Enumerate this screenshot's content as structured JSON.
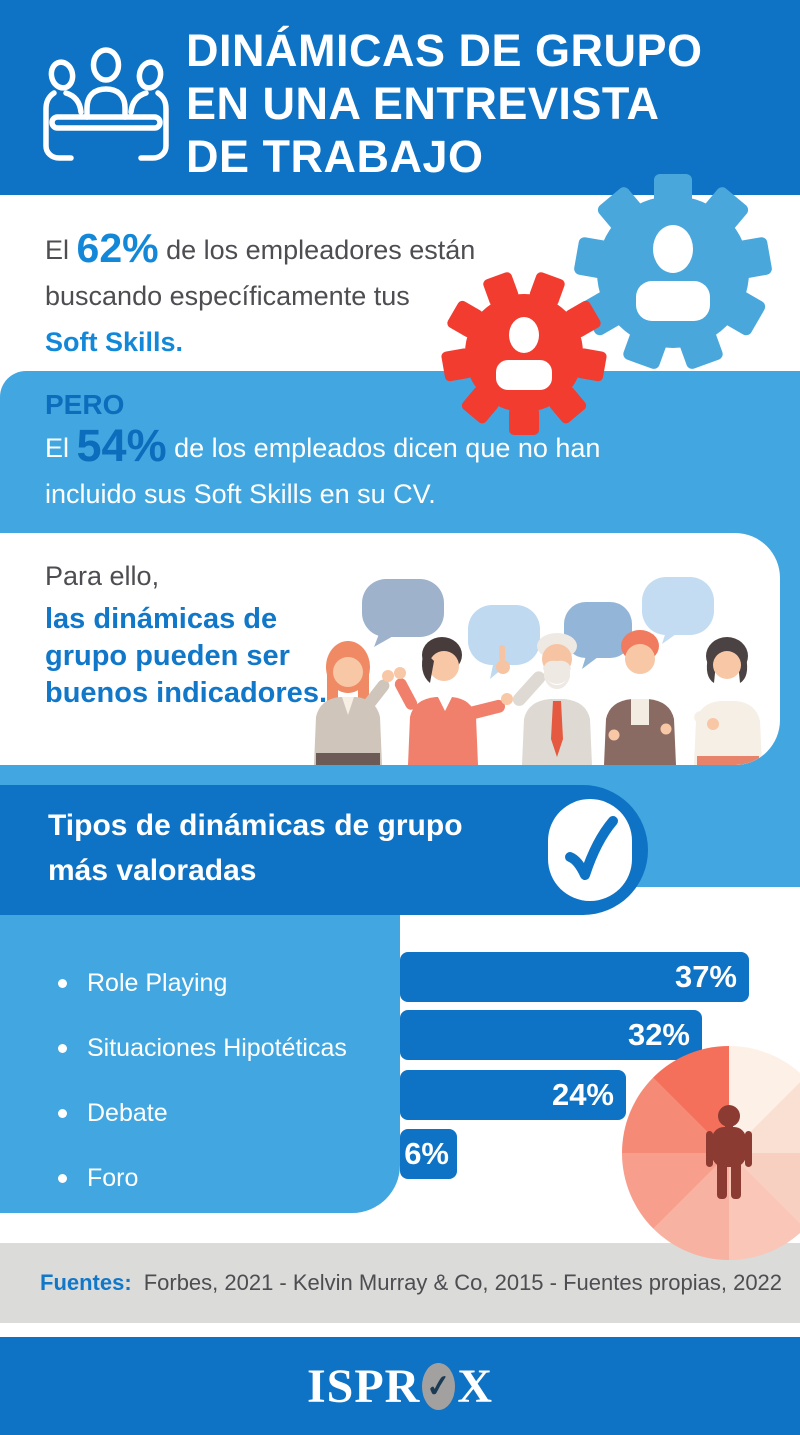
{
  "header": {
    "title": "DINÁMICAS DE GRUPO\nEN UNA ENTREVISTA\nDE TRABAJO"
  },
  "stat_employers": {
    "prefix": "El",
    "value": "62%",
    "line1_rest": "de los empleadores están",
    "line2": "buscando específicamente tus",
    "highlight": "Soft Skills."
  },
  "stat_employees": {
    "label": "PERO",
    "prefix": "El",
    "value": "54%",
    "line1_rest": "de los empleados dicen que no han",
    "line2": "incluido sus Soft Skills en su CV."
  },
  "card": {
    "intro": "Para ello,",
    "emphasis": "las dinámicas de\ngrupo pueden ser\nbuenos indicadores."
  },
  "banner": {
    "title": "Tipos de dinámicas de grupo\nmás valoradas"
  },
  "chart_data": {
    "type": "bar",
    "orientation": "horizontal",
    "title": "Tipos de dinámicas de grupo más valoradas",
    "categories": [
      "Role Playing",
      "Situaciones Hipotéticas",
      "Debate",
      "Foro"
    ],
    "values": [
      37,
      32,
      24,
      6
    ],
    "value_labels": [
      "37%",
      "32%",
      "24%",
      "6%"
    ],
    "unit": "%",
    "xlim": [
      0,
      40
    ],
    "bar_color": "#0E73C4",
    "legend": "none",
    "grid": false
  },
  "sources": {
    "label": "Fuentes:",
    "text": "Forbes, 2021 - Kelvin Murray & Co, 2015 - Fuentes propias, 2022"
  },
  "footer": {
    "brand_pre": "ISPR",
    "brand_post": "X"
  },
  "colors": {
    "primary_blue": "#0E73C4",
    "light_blue": "#42A7E0",
    "accent_blue": "#1488D8",
    "gear_red": "#F23C30",
    "gear_blue": "#4AA7DC",
    "pie_salmon": "#F4705A",
    "pie_person_maroon": "#8C3B33",
    "gray_band": "#DBDBD9",
    "text_gray": "#4D4D52"
  }
}
